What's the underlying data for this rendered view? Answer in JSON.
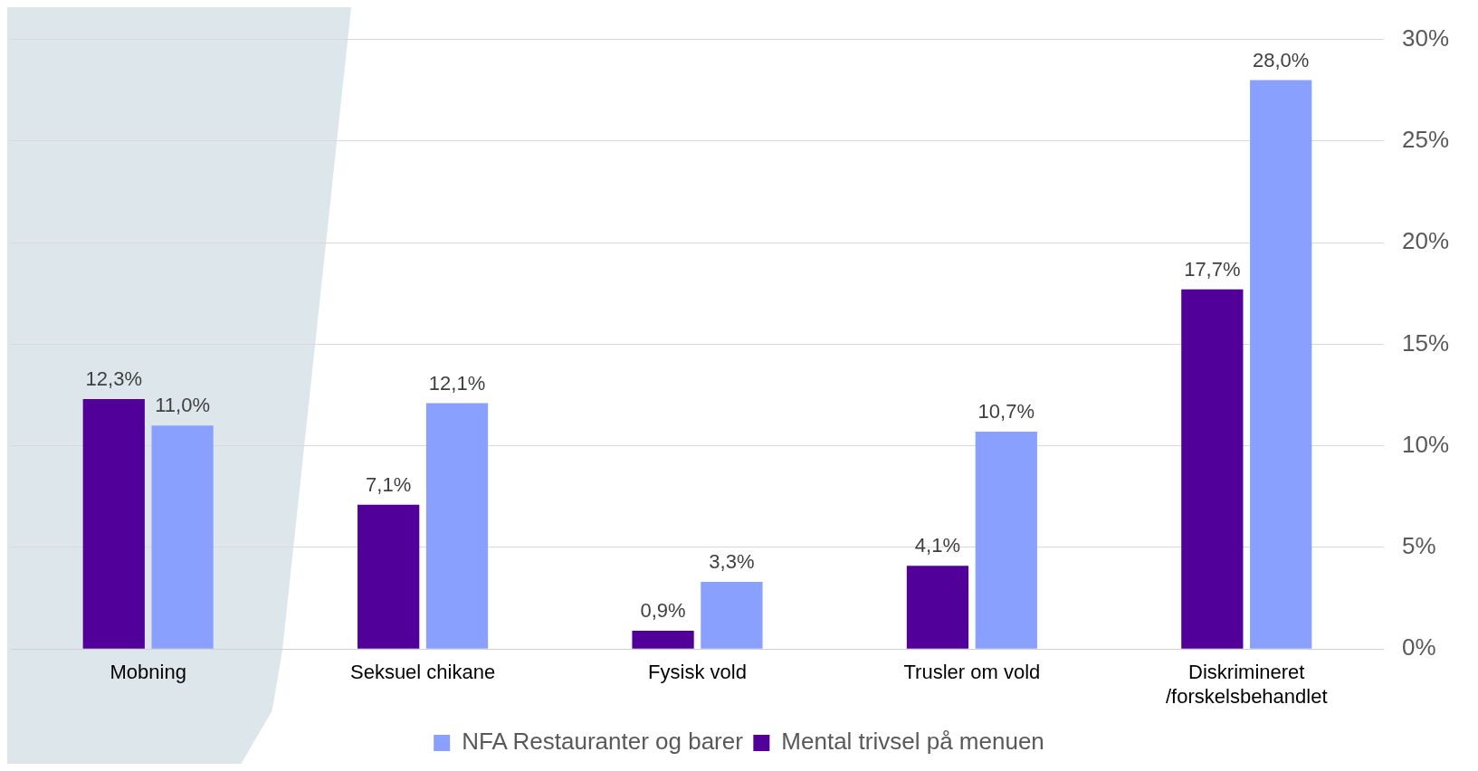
{
  "chart_data": {
    "type": "bar",
    "categories": [
      "Mobning",
      "Seksuel chikane",
      "Fysisk vold",
      "Trusler om vold",
      "Diskrimineret\n/forskelsbehandlet"
    ],
    "series": [
      {
        "name": "Mental trivsel på menuen",
        "color": "#52009a",
        "values": [
          12.3,
          7.1,
          0.9,
          4.1,
          17.7
        ],
        "value_labels": [
          "12,3%",
          "7,1%",
          "0,9%",
          "4,1%",
          "17,7%"
        ]
      },
      {
        "name": "NFA Restauranter og barer",
        "color": "#8aa0ff",
        "values": [
          11.0,
          12.1,
          3.3,
          10.7,
          28.0
        ],
        "value_labels": [
          "11,0%",
          "12,1%",
          "3,3%",
          "10,7%",
          "28,0%"
        ]
      }
    ],
    "ylim": [
      0,
      30
    ],
    "yticks": [
      {
        "value": 0,
        "label": "0%"
      },
      {
        "value": 5,
        "label": "5%"
      },
      {
        "value": 10,
        "label": "10%"
      },
      {
        "value": 15,
        "label": "15%"
      },
      {
        "value": 20,
        "label": "20%"
      },
      {
        "value": 25,
        "label": "25%"
      },
      {
        "value": 30,
        "label": "30%"
      }
    ],
    "grid": "y",
    "legend": "bottom"
  }
}
